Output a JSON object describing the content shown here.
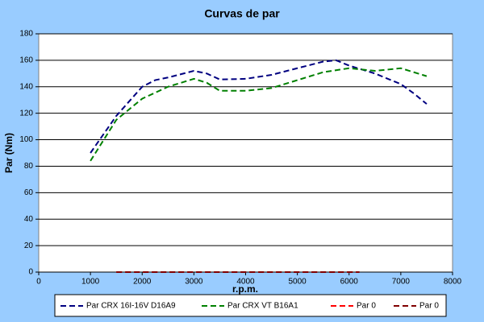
{
  "chart_data": {
    "type": "line",
    "title": "Curvas de par",
    "x_label": "r.p.m.",
    "y_label": "Par (Nm)",
    "xlim": [
      0,
      8000
    ],
    "xticks": [
      0,
      1000,
      2000,
      3000,
      4000,
      5000,
      6000,
      7000,
      8000
    ],
    "ylim": [
      0,
      180
    ],
    "yticks": [
      0,
      20,
      40,
      60,
      80,
      100,
      120,
      140,
      160,
      180
    ],
    "grid": true,
    "series": [
      {
        "name": "Par CRX 16I-16V D16A9",
        "color": "#000080",
        "x": [
          1000,
          1500,
          2000,
          2250,
          2500,
          3000,
          3250,
          3500,
          4000,
          4500,
          5000,
          5500,
          5750,
          6000,
          6500,
          7000,
          7250,
          7500
        ],
        "values": [
          90,
          118,
          140,
          145,
          147,
          152,
          150,
          145.5,
          146,
          149,
          154,
          159,
          160,
          156,
          150,
          142,
          135,
          127
        ]
      },
      {
        "name": "Par CRX VT B16A1",
        "color": "#008000",
        "x": [
          1000,
          1500,
          2000,
          2500,
          3000,
          3250,
          3500,
          4000,
          4500,
          5000,
          5500,
          6000,
          6500,
          7000,
          7500
        ],
        "values": [
          84,
          115,
          131,
          140,
          146,
          143,
          137,
          137,
          139,
          145,
          151,
          154,
          152,
          154,
          148
        ]
      },
      {
        "name": "Par 0",
        "color": "#ff0000",
        "x": [
          1500,
          6200
        ],
        "values": [
          0,
          0
        ]
      },
      {
        "name": "Par 0",
        "color": "#800000",
        "x": [
          1500,
          6200
        ],
        "values": [
          0,
          0
        ]
      }
    ]
  }
}
